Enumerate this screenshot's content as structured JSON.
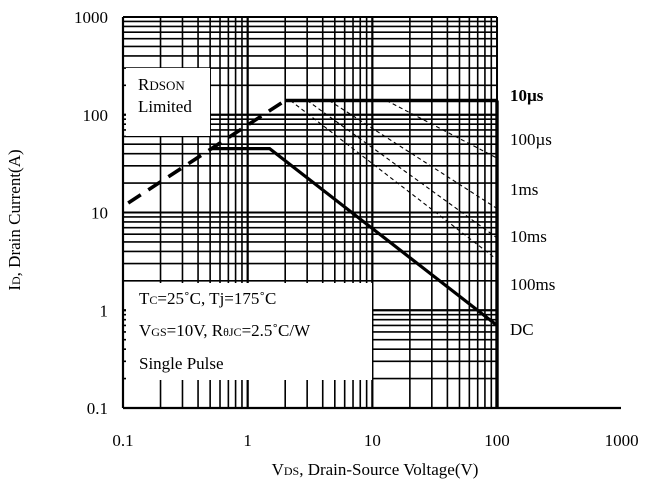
{
  "chart_data": {
    "type": "line",
    "x_scale": "log",
    "y_scale": "log",
    "xlim": [
      0.1,
      1000
    ],
    "ylim": [
      0.1,
      1000
    ],
    "grid": true,
    "xlabel": {
      "sub": "DS",
      "main": ", Drain-Source Voltage(V)",
      "prefix": "V"
    },
    "ylabel": {
      "prefix": "I",
      "sub": "D",
      "main": ", Drain Current(A)"
    },
    "x_ticks": [
      "0.1",
      "1",
      "10",
      "100",
      "1000"
    ],
    "y_ticks": [
      "0.1",
      "1",
      "10",
      "100",
      "1000"
    ],
    "series": [
      {
        "name": "10µs",
        "style": "solid-thick",
        "points": [
          [
            2,
            140
          ],
          [
            100,
            140
          ]
        ]
      },
      {
        "name": "100µs",
        "style": "dashed",
        "points": [
          [
            13,
            140
          ],
          [
            100,
            36
          ]
        ]
      },
      {
        "name": "1ms",
        "style": "dashed",
        "points": [
          [
            4.5,
            140
          ],
          [
            100,
            11
          ]
        ]
      },
      {
        "name": "10ms",
        "style": "dashed",
        "points": [
          [
            3,
            140
          ],
          [
            100,
            5.5
          ]
        ]
      },
      {
        "name": "100ms",
        "style": "dashed",
        "points": [
          [
            2.2,
            140
          ],
          [
            100,
            3.3
          ]
        ]
      },
      {
        "name": "DC",
        "style": "solid",
        "points": [
          [
            0.5,
            45
          ],
          [
            1.5,
            45
          ],
          [
            100,
            0.7
          ]
        ]
      },
      {
        "name": "RDSON Limited",
        "style": "dashed-thick",
        "points": [
          [
            0.11,
            12.5
          ],
          [
            2,
            140
          ]
        ]
      }
    ],
    "annotations": {
      "rdson_line1_prefix": "R",
      "rdson_line1_sub": "DSON",
      "rdson_line2": "Limited",
      "cond1_a": "T",
      "cond1_a_sub": "C",
      "cond1_b": "=25˚C, Tj=175˚C",
      "cond2_a": "V",
      "cond2_a_sub": "GS",
      "cond2_b": "=10V, R",
      "cond2_b_sub": "θJC",
      "cond2_c": "=2.5˚C/W",
      "cond3": "Single Pulse"
    },
    "curve_labels": [
      "10µs",
      "100µs",
      "1ms",
      "10ms",
      "100ms",
      "DC"
    ]
  }
}
